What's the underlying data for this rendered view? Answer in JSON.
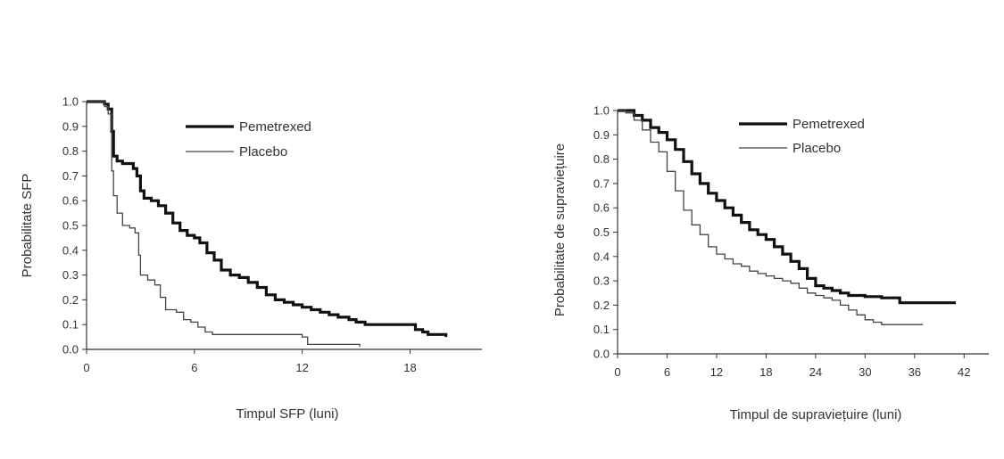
{
  "chart_data": [
    {
      "type": "line",
      "xlabel": "Timpul SFP (luni)",
      "ylabel": "Probabilitate SFP",
      "xlim": [
        0,
        22
      ],
      "ylim": [
        0,
        1.0
      ],
      "xticks": [
        "0",
        "6",
        "12",
        "18"
      ],
      "xtick_values": [
        0,
        6,
        12,
        18
      ],
      "yticks": [
        "0.0",
        "0.1",
        "0.2",
        "0.3",
        "0.4",
        "0.5",
        "0.6",
        "0.7",
        "0.8",
        "0.9",
        "1.0"
      ],
      "ytick_values": [
        0.0,
        0.1,
        0.2,
        0.3,
        0.4,
        0.5,
        0.6,
        0.7,
        0.8,
        0.9,
        1.0
      ],
      "legend": {
        "position": "top-right"
      },
      "series": [
        {
          "name": "Pemetrexed",
          "style": "thick",
          "color": "#111111",
          "points": [
            [
              0,
              1.0
            ],
            [
              0.8,
              1.0
            ],
            [
              1.0,
              0.99
            ],
            [
              1.2,
              0.97
            ],
            [
              1.4,
              0.88
            ],
            [
              1.5,
              0.78
            ],
            [
              1.7,
              0.76
            ],
            [
              2.0,
              0.75
            ],
            [
              2.3,
              0.75
            ],
            [
              2.6,
              0.73
            ],
            [
              2.8,
              0.7
            ],
            [
              3.0,
              0.64
            ],
            [
              3.2,
              0.61
            ],
            [
              3.6,
              0.6
            ],
            [
              4.0,
              0.58
            ],
            [
              4.4,
              0.55
            ],
            [
              4.8,
              0.51
            ],
            [
              5.2,
              0.48
            ],
            [
              5.6,
              0.46
            ],
            [
              6.0,
              0.45
            ],
            [
              6.3,
              0.43
            ],
            [
              6.7,
              0.39
            ],
            [
              7.1,
              0.36
            ],
            [
              7.5,
              0.32
            ],
            [
              8.0,
              0.3
            ],
            [
              8.5,
              0.29
            ],
            [
              9.0,
              0.27
            ],
            [
              9.5,
              0.25
            ],
            [
              10.0,
              0.22
            ],
            [
              10.5,
              0.2
            ],
            [
              11.0,
              0.19
            ],
            [
              11.5,
              0.18
            ],
            [
              12.0,
              0.17
            ],
            [
              12.5,
              0.16
            ],
            [
              13.0,
              0.15
            ],
            [
              13.5,
              0.14
            ],
            [
              14.0,
              0.13
            ],
            [
              14.6,
              0.12
            ],
            [
              15.0,
              0.11
            ],
            [
              15.5,
              0.1
            ],
            [
              16.5,
              0.1
            ],
            [
              17.5,
              0.1
            ],
            [
              18.3,
              0.08
            ],
            [
              18.7,
              0.07
            ],
            [
              19.0,
              0.06
            ],
            [
              20.0,
              0.05
            ]
          ]
        },
        {
          "name": "Placebo",
          "style": "thin",
          "color": "#444444",
          "points": [
            [
              0,
              1.0
            ],
            [
              0.8,
              1.0
            ],
            [
              1.0,
              0.98
            ],
            [
              1.2,
              0.95
            ],
            [
              1.4,
              0.72
            ],
            [
              1.5,
              0.62
            ],
            [
              1.7,
              0.55
            ],
            [
              2.0,
              0.5
            ],
            [
              2.4,
              0.49
            ],
            [
              2.7,
              0.47
            ],
            [
              2.9,
              0.38
            ],
            [
              3.0,
              0.3
            ],
            [
              3.4,
              0.28
            ],
            [
              3.8,
              0.26
            ],
            [
              4.1,
              0.21
            ],
            [
              4.4,
              0.16
            ],
            [
              5.0,
              0.15
            ],
            [
              5.4,
              0.12
            ],
            [
              5.8,
              0.11
            ],
            [
              6.2,
              0.09
            ],
            [
              6.6,
              0.07
            ],
            [
              7.0,
              0.06
            ],
            [
              9.0,
              0.06
            ],
            [
              11.0,
              0.06
            ],
            [
              12.0,
              0.05
            ],
            [
              12.3,
              0.02
            ],
            [
              14.0,
              0.02
            ],
            [
              15.2,
              0.02
            ],
            [
              15.2,
              0.01
            ]
          ]
        }
      ]
    },
    {
      "type": "line",
      "xlabel": "Timpul de supraviețuire (luni)",
      "ylabel": "Probabilitate de supraviețuire",
      "xlim": [
        0,
        45
      ],
      "ylim": [
        0,
        1.0
      ],
      "xticks": [
        "0",
        "6",
        "12",
        "18",
        "24",
        "30",
        "36",
        "42"
      ],
      "xtick_values": [
        0,
        6,
        12,
        18,
        24,
        30,
        36,
        42
      ],
      "yticks": [
        "0.0",
        "0.1",
        "0.2",
        "0.3",
        "0.4",
        "0.5",
        "0.6",
        "0.7",
        "0.8",
        "0.9",
        "1.0"
      ],
      "ytick_values": [
        0.0,
        0.1,
        0.2,
        0.3,
        0.4,
        0.5,
        0.6,
        0.7,
        0.8,
        0.9,
        1.0
      ],
      "legend": {
        "position": "top-right"
      },
      "series": [
        {
          "name": "Pemetrexed",
          "style": "thick",
          "color": "#111111",
          "points": [
            [
              0,
              1.0
            ],
            [
              1.0,
              1.0
            ],
            [
              2.0,
              0.98
            ],
            [
              3.0,
              0.96
            ],
            [
              4.0,
              0.93
            ],
            [
              5.0,
              0.91
            ],
            [
              6.0,
              0.88
            ],
            [
              7.0,
              0.84
            ],
            [
              8.0,
              0.79
            ],
            [
              9.0,
              0.74
            ],
            [
              10.0,
              0.7
            ],
            [
              11.0,
              0.66
            ],
            [
              12.0,
              0.63
            ],
            [
              13.0,
              0.6
            ],
            [
              14.0,
              0.57
            ],
            [
              15.0,
              0.54
            ],
            [
              16.0,
              0.51
            ],
            [
              17.0,
              0.49
            ],
            [
              18.0,
              0.47
            ],
            [
              19.0,
              0.44
            ],
            [
              20.0,
              0.41
            ],
            [
              21.0,
              0.38
            ],
            [
              22.0,
              0.35
            ],
            [
              23.0,
              0.31
            ],
            [
              24.0,
              0.28
            ],
            [
              25.0,
              0.27
            ],
            [
              26.0,
              0.26
            ],
            [
              27.0,
              0.25
            ],
            [
              28.0,
              0.24
            ],
            [
              30.0,
              0.235
            ],
            [
              32.0,
              0.23
            ],
            [
              34.0,
              0.23
            ],
            [
              34.2,
              0.21
            ],
            [
              36.0,
              0.21
            ],
            [
              38.0,
              0.21
            ],
            [
              41.0,
              0.21
            ]
          ]
        },
        {
          "name": "Placebo",
          "style": "thin",
          "color": "#444444",
          "points": [
            [
              0,
              1.0
            ],
            [
              1.0,
              0.99
            ],
            [
              2.0,
              0.96
            ],
            [
              3.0,
              0.92
            ],
            [
              4.0,
              0.87
            ],
            [
              5.0,
              0.83
            ],
            [
              6.0,
              0.75
            ],
            [
              7.0,
              0.67
            ],
            [
              8.0,
              0.59
            ],
            [
              9.0,
              0.53
            ],
            [
              10.0,
              0.49
            ],
            [
              11.0,
              0.44
            ],
            [
              12.0,
              0.41
            ],
            [
              13.0,
              0.39
            ],
            [
              14.0,
              0.37
            ],
            [
              15.0,
              0.36
            ],
            [
              16.0,
              0.34
            ],
            [
              17.0,
              0.33
            ],
            [
              18.0,
              0.32
            ],
            [
              19.0,
              0.31
            ],
            [
              20.0,
              0.3
            ],
            [
              21.0,
              0.29
            ],
            [
              22.0,
              0.27
            ],
            [
              23.0,
              0.25
            ],
            [
              24.0,
              0.24
            ],
            [
              25.0,
              0.23
            ],
            [
              26.0,
              0.22
            ],
            [
              27.0,
              0.2
            ],
            [
              28.0,
              0.18
            ],
            [
              29.0,
              0.16
            ],
            [
              30.0,
              0.14
            ],
            [
              31.0,
              0.13
            ],
            [
              32.0,
              0.12
            ],
            [
              34.0,
              0.12
            ],
            [
              37.0,
              0.12
            ]
          ]
        }
      ]
    }
  ]
}
